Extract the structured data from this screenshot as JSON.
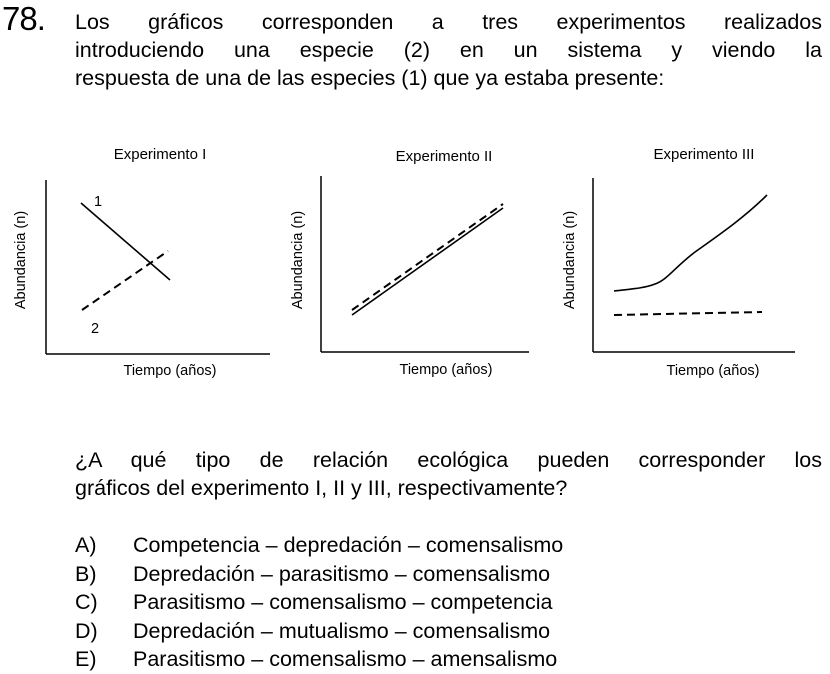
{
  "question": {
    "number": "78.",
    "stem_lines": [
      "Los gráficos corresponden a tres experimentos realizados",
      "introduciendo una especie (2) en un sistema y viendo la",
      "respuesta de una de las especies (1) que ya estaba presente:"
    ],
    "prompt_lines": [
      "¿A qué tipo de relación ecológica pueden corresponder los",
      "gráficos del experimento I, II y III, respectivamente?"
    ],
    "options": [
      {
        "letter": "A)",
        "text": "Competencia – depredación – comensalismo"
      },
      {
        "letter": "B)",
        "text": "Depredación – parasitismo – comensalismo"
      },
      {
        "letter": "C)",
        "text": "Parasitismo – comensalismo – competencia"
      },
      {
        "letter": "D)",
        "text": "Depredación – mutualismo – comensalismo"
      },
      {
        "letter": "E)",
        "text": "Parasitismo – comensalismo – amensalismo"
      }
    ]
  },
  "chart_data": [
    {
      "type": "line",
      "title": "Experimento I",
      "xlabel": "Tiempo (años)",
      "ylabel": "Abundancia (n)",
      "series": [
        {
          "name": "1",
          "style": "solid",
          "trend": "decreasing"
        },
        {
          "name": "2",
          "style": "dashed",
          "trend": "increasing"
        }
      ]
    },
    {
      "type": "line",
      "title": "Experimento II",
      "xlabel": "Tiempo (años)",
      "ylabel": "Abundancia (n)",
      "series": [
        {
          "style": "solid",
          "trend": "increasing"
        },
        {
          "style": "dashed",
          "trend": "increasing"
        }
      ]
    },
    {
      "type": "line",
      "title": "Experimento III",
      "xlabel": "Tiempo (años)",
      "ylabel": "Abundancia (n)",
      "series": [
        {
          "style": "solid",
          "trend": "increasing"
        },
        {
          "style": "dashed",
          "trend": "constant"
        }
      ]
    }
  ]
}
